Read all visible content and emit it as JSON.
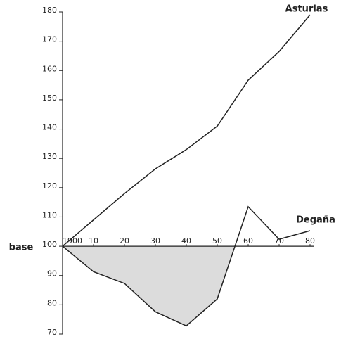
{
  "chart_data": {
    "type": "line",
    "x": [
      1900,
      1910,
      1920,
      1930,
      1940,
      1950,
      1960,
      1970,
      1980
    ],
    "series": [
      {
        "name": "Asturias",
        "color": "#222222",
        "values": [
          100,
          109,
          118,
          126.4,
          133,
          141,
          156.7,
          166.5,
          179
        ]
      },
      {
        "name": "Degaña",
        "color": "#222222",
        "values": [
          100,
          91.3,
          87.3,
          77.6,
          72.8,
          82,
          113.5,
          102.4,
          105.3
        ]
      }
    ],
    "baseline_label": "base",
    "baseline": 100,
    "xlim": [
      1900,
      1980
    ],
    "xticks": [
      {
        "value": 1900,
        "label": "1900"
      },
      {
        "value": 1910,
        "label": "10"
      },
      {
        "value": 1920,
        "label": "20"
      },
      {
        "value": 1930,
        "label": "30"
      },
      {
        "value": 1940,
        "label": "40"
      },
      {
        "value": 1950,
        "label": "50"
      },
      {
        "value": 1960,
        "label": "60"
      },
      {
        "value": 1970,
        "label": "70"
      },
      {
        "value": 1980,
        "label": "80"
      }
    ],
    "ylim": [
      70,
      180
    ],
    "yticks": [
      70,
      80,
      90,
      100,
      110,
      120,
      130,
      140,
      150,
      160,
      170,
      180
    ],
    "shade_below_baseline": true,
    "shade_color": "#dcdcdc"
  }
}
